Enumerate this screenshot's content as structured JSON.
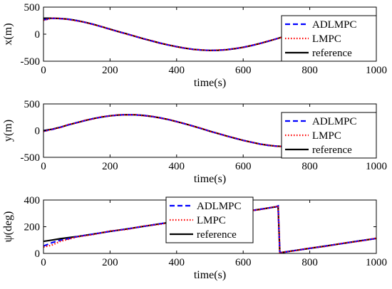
{
  "chart_data": [
    {
      "type": "line",
      "xlabel": "time(s)",
      "ylabel": "x(m)",
      "xlim": [
        0,
        1000
      ],
      "ylim": [
        -500,
        500
      ],
      "xticks": [
        "0",
        "200",
        "400",
        "600",
        "800",
        "1000"
      ],
      "yticks": [
        "-500",
        "0",
        "500"
      ],
      "legend_position": "top-right",
      "x": [
        0,
        25,
        50,
        75,
        100,
        125,
        150,
        175,
        200,
        225,
        250,
        275,
        300,
        325,
        350,
        375,
        400,
        425,
        450,
        475,
        500,
        525,
        550,
        575,
        600,
        625,
        650,
        675,
        700,
        725,
        750,
        775,
        800,
        825,
        850,
        875,
        900,
        925,
        950,
        975,
        1000
      ],
      "series": [
        {
          "name": "ADLMPC",
          "style": "dashed",
          "color": "#0000ff",
          "values": [
            265,
            292,
            288,
            275,
            250,
            218,
            180,
            136,
            92,
            46,
            4,
            -40,
            -84,
            -125,
            -165,
            -200,
            -232,
            -260,
            -280,
            -294,
            -300,
            -298,
            -286,
            -268,
            -242,
            -210,
            -172,
            -130,
            -86,
            -40,
            8,
            54,
            100,
            142,
            182,
            218,
            248,
            270,
            286,
            294,
            296
          ]
        },
        {
          "name": "LMPC",
          "style": "dotted",
          "color": "#ff0000",
          "values": [
            258,
            295,
            290,
            272,
            246,
            220,
            176,
            140,
            88,
            50,
            0,
            -36,
            -88,
            -120,
            -168,
            -196,
            -236,
            -256,
            -284,
            -290,
            -304,
            -294,
            -290,
            -264,
            -246,
            -206,
            -176,
            -126,
            -90,
            -36,
            4,
            58,
            96,
            146,
            178,
            222,
            244,
            274,
            282,
            298,
            292
          ]
        },
        {
          "name": "reference",
          "style": "solid",
          "color": "#000000",
          "values": [
            295,
            295,
            290,
            276,
            252,
            220,
            181,
            138,
            93,
            47,
            5,
            -39,
            -83,
            -124,
            -164,
            -200,
            -232,
            -259,
            -280,
            -294,
            -300,
            -298,
            -287,
            -268,
            -242,
            -210,
            -172,
            -130,
            -86,
            -40,
            8,
            54,
            100,
            142,
            182,
            218,
            248,
            270,
            286,
            294,
            296
          ]
        }
      ]
    },
    {
      "type": "line",
      "xlabel": "time(s)",
      "ylabel": "y(m)",
      "xlim": [
        0,
        1000
      ],
      "ylim": [
        -500,
        500
      ],
      "xticks": [
        "0",
        "200",
        "400",
        "600",
        "800",
        "1000"
      ],
      "yticks": [
        "-500",
        "0",
        "500"
      ],
      "legend_position": "top-right",
      "x": [
        0,
        25,
        50,
        75,
        100,
        125,
        150,
        175,
        200,
        225,
        250,
        275,
        300,
        325,
        350,
        375,
        400,
        425,
        450,
        475,
        500,
        525,
        550,
        575,
        600,
        625,
        650,
        675,
        700,
        725,
        750,
        775,
        800,
        825,
        850,
        875,
        900,
        925,
        950,
        975,
        1000
      ],
      "series": [
        {
          "name": "ADLMPC",
          "style": "dashed",
          "color": "#0000ff",
          "values": [
            -10,
            20,
            60,
            110,
            150,
            190,
            225,
            255,
            278,
            292,
            298,
            296,
            285,
            266,
            240,
            208,
            170,
            128,
            84,
            38,
            -10,
            -56,
            -100,
            -142,
            -182,
            -218,
            -250,
            -274,
            -290,
            -298,
            -296,
            -286,
            -268,
            -244,
            -212,
            -176,
            -134,
            -90,
            -44,
            4,
            100
          ]
        },
        {
          "name": "LMPC",
          "style": "dotted",
          "color": "#ff0000",
          "values": [
            -14,
            24,
            56,
            114,
            146,
            194,
            220,
            260,
            274,
            296,
            294,
            300,
            280,
            270,
            236,
            212,
            166,
            132,
            80,
            42,
            -14,
            -52,
            -104,
            -138,
            -186,
            -214,
            -254,
            -270,
            -294,
            -294,
            -300,
            -282,
            -272,
            -240,
            -216,
            -172,
            -138,
            -86,
            -48,
            8,
            96
          ]
        },
        {
          "name": "reference",
          "style": "solid",
          "color": "#000000",
          "values": [
            0,
            25,
            62,
            108,
            150,
            190,
            225,
            255,
            278,
            292,
            298,
            296,
            285,
            266,
            240,
            208,
            170,
            128,
            84,
            38,
            -10,
            -56,
            -100,
            -142,
            -182,
            -218,
            -250,
            -274,
            -290,
            -298,
            -296,
            -286,
            -268,
            -244,
            -212,
            -176,
            -134,
            -90,
            -44,
            4,
            100
          ]
        }
      ]
    },
    {
      "type": "line",
      "xlabel": "time(s)",
      "ylabel": "ψ(deg)",
      "xlim": [
        0,
        1000
      ],
      "ylim": [
        0,
        400
      ],
      "xticks": [
        "0",
        "200",
        "400",
        "600",
        "800",
        "1000"
      ],
      "yticks": [
        "0",
        "200",
        "400"
      ],
      "legend_position": "top-center",
      "x": [
        0,
        25,
        50,
        75,
        100,
        150,
        200,
        250,
        300,
        350,
        400,
        450,
        500,
        550,
        600,
        650,
        700,
        705,
        710,
        725,
        750,
        800,
        850,
        900,
        950,
        1000
      ],
      "series": [
        {
          "name": "ADLMPC",
          "style": "dashed",
          "color": "#0000ff",
          "values": [
            55,
            80,
            98,
            110,
            125,
            145,
            165,
            183,
            202,
            222,
            240,
            258,
            275,
            293,
            312,
            330,
            350,
            355,
            5,
            10,
            20,
            38,
            56,
            75,
            94,
            112
          ]
        },
        {
          "name": "LMPC",
          "style": "dotted",
          "color": "#ff0000",
          "values": [
            48,
            62,
            90,
            106,
            124,
            142,
            168,
            180,
            205,
            218,
            243,
            255,
            278,
            290,
            315,
            328,
            352,
            356,
            3,
            12,
            18,
            40,
            54,
            77,
            92,
            114
          ]
        },
        {
          "name": "reference",
          "style": "solid",
          "color": "#000000",
          "values": [
            90,
            100,
            110,
            118,
            126,
            145,
            165,
            183,
            202,
            222,
            240,
            258,
            275,
            293,
            312,
            330,
            350,
            355,
            5,
            10,
            20,
            38,
            56,
            75,
            94,
            112
          ]
        }
      ]
    }
  ]
}
